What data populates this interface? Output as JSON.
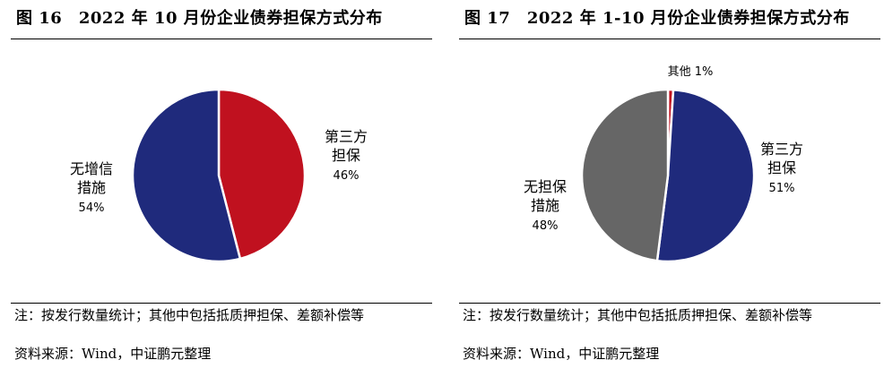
{
  "charts": [
    {
      "title": "图 16　2022 年 10 月份企业债券担保方式分布",
      "note": "注：按发行数量统计；其他中包括抵质押担保、差额补偿等",
      "source": "资料来源：Wind，中证鹏元整理"
    },
    {
      "title": "图 17　2022 年 1-10 月份企业债券担保方式分布",
      "note": "注：按发行数量统计；其他中包括抵质押担保、差额补偿等",
      "source": "资料来源：Wind，中证鹏元整理"
    }
  ],
  "chart_data": [
    {
      "type": "pie",
      "title": "2022 年 10 月份企业债券担保方式分布",
      "slices": [
        {
          "label": [
            "第三方",
            "担保"
          ],
          "value": 46,
          "percent_label": "46%",
          "color": "#c0111f"
        },
        {
          "label": [
            "无增信",
            "措施"
          ],
          "value": 54,
          "percent_label": "54%",
          "color": "#1f2a7c"
        }
      ]
    },
    {
      "type": "pie",
      "title": "2022 年 1-10 月份企业债券担保方式分布",
      "slices": [
        {
          "label": [
            "其他"
          ],
          "value": 1,
          "percent_label": "1%",
          "color": "#c0111f"
        },
        {
          "label": [
            "第三方",
            "担保"
          ],
          "value": 51,
          "percent_label": "51%",
          "color": "#1f2a7c"
        },
        {
          "label": [
            "无担保",
            "措施"
          ],
          "value": 48,
          "percent_label": "48%",
          "color": "#666666"
        }
      ]
    }
  ]
}
